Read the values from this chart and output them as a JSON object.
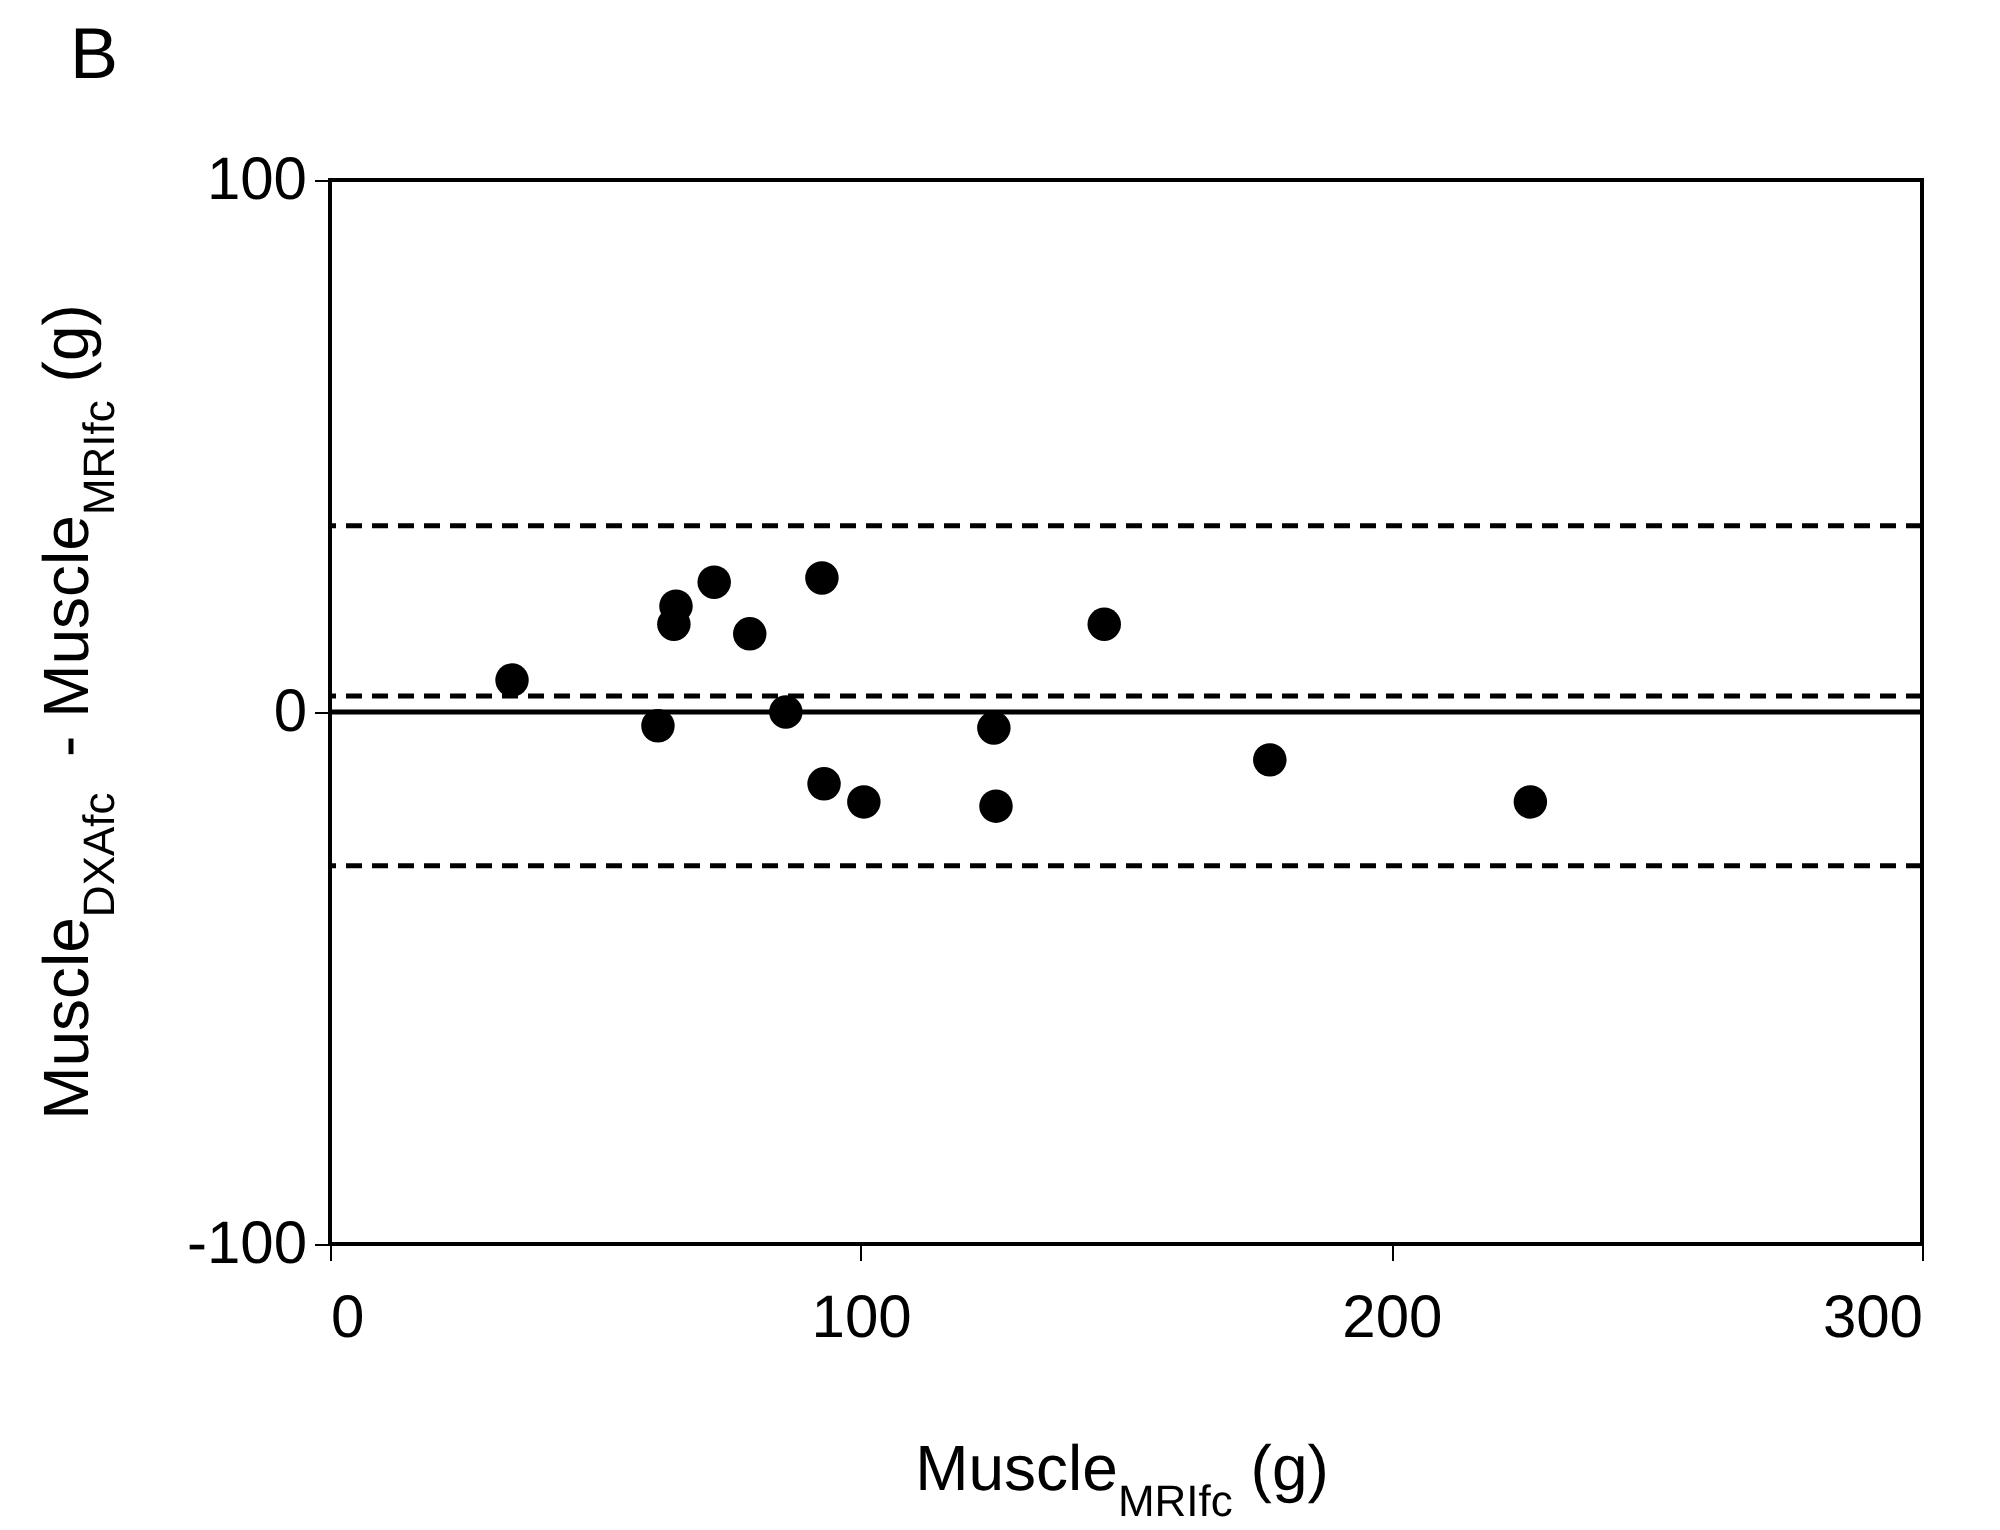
{
  "chart_data": {
    "type": "scatter",
    "title": "B",
    "xlabel": "Muscle$_{MRIfc}$ (g)",
    "ylabel": "Muscle$_{DXAfc}$  - Muscle$_{MRIfc}$ (g)",
    "x": [
      34.3,
      61.8,
      65.2,
      64.8,
      72.4,
      79.1,
      85.9,
      92.7,
      93.1,
      100.6,
      125.1,
      125.5,
      145.9,
      177.1,
      226.2
    ],
    "values": [
      6.0,
      -2.6,
      19.9,
      16.5,
      24.4,
      14.7,
      0,
      25.2,
      -13.5,
      -16.9,
      -3.0,
      -17.7,
      16.5,
      -9.0,
      -16.9
    ],
    "color": "#000000",
    "marker": "circle",
    "xlim": [
      0,
      300
    ],
    "xticks": [
      0,
      100,
      200,
      300
    ],
    "ylim": [
      -100,
      100
    ],
    "yticks": [
      -100,
      0,
      100
    ],
    "grid": false,
    "ref_lines": [
      {
        "axis": "y",
        "value": 35,
        "line_style": "dashed"
      },
      {
        "axis": "y",
        "value": 3,
        "line_style": "dashed"
      },
      {
        "axis": "y",
        "value": -28.9,
        "line_style": "dashed"
      },
      {
        "axis": "y",
        "value": 0,
        "line_style": "solid"
      }
    ]
  }
}
